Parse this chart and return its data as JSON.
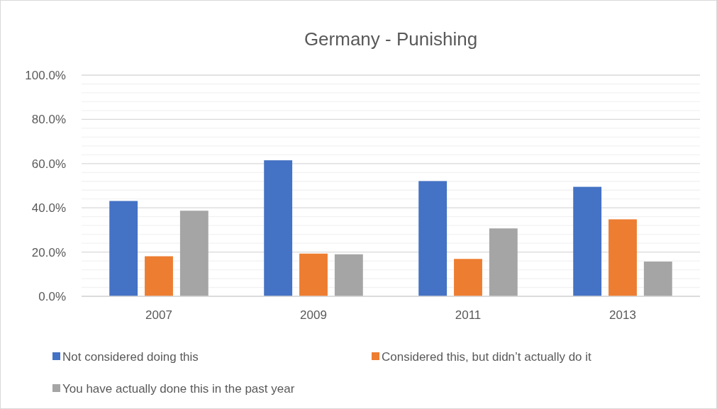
{
  "chart_data": {
    "type": "bar",
    "title": "Germany - Punishing",
    "categories": [
      "2007",
      "2009",
      "2011",
      "2013"
    ],
    "series": [
      {
        "name": "Not considered doing this",
        "color": "#4472c4",
        "values": [
          43.1,
          61.5,
          52.1,
          49.5
        ]
      },
      {
        "name": "Considered this, but didn’t actually do it",
        "color": "#ed7d31",
        "values": [
          18.1,
          19.3,
          16.9,
          34.8
        ]
      },
      {
        "name": "You have actually done this in the past year",
        "color": "#a5a5a5",
        "values": [
          38.7,
          19.0,
          30.7,
          15.7
        ]
      }
    ],
    "ylim": [
      0,
      100
    ],
    "yticks": [
      {
        "value": 0,
        "label": "0.0%"
      },
      {
        "value": 4,
        "label": null
      },
      {
        "value": 8,
        "label": null
      },
      {
        "value": 12,
        "label": null
      },
      {
        "value": 16,
        "label": null
      },
      {
        "value": 20,
        "label": "20.0%"
      },
      {
        "value": 24,
        "label": null
      },
      {
        "value": 28,
        "label": null
      },
      {
        "value": 32,
        "label": null
      },
      {
        "value": 36,
        "label": null
      },
      {
        "value": 40,
        "label": "40.0%"
      },
      {
        "value": 44,
        "label": null
      },
      {
        "value": 48,
        "label": null
      },
      {
        "value": 52,
        "label": null
      },
      {
        "value": 56,
        "label": null
      },
      {
        "value": 60,
        "label": "60.0%"
      },
      {
        "value": 64,
        "label": null
      },
      {
        "value": 68,
        "label": null
      },
      {
        "value": 72,
        "label": null
      },
      {
        "value": 76,
        "label": null
      },
      {
        "value": 80,
        "label": "80.0%"
      },
      {
        "value": 84,
        "label": null
      },
      {
        "value": 88,
        "label": null
      },
      {
        "value": 92,
        "label": null
      },
      {
        "value": 96,
        "label": null
      },
      {
        "value": 100,
        "label": "100.0%"
      }
    ],
    "grid": true,
    "legend": "bottom"
  }
}
